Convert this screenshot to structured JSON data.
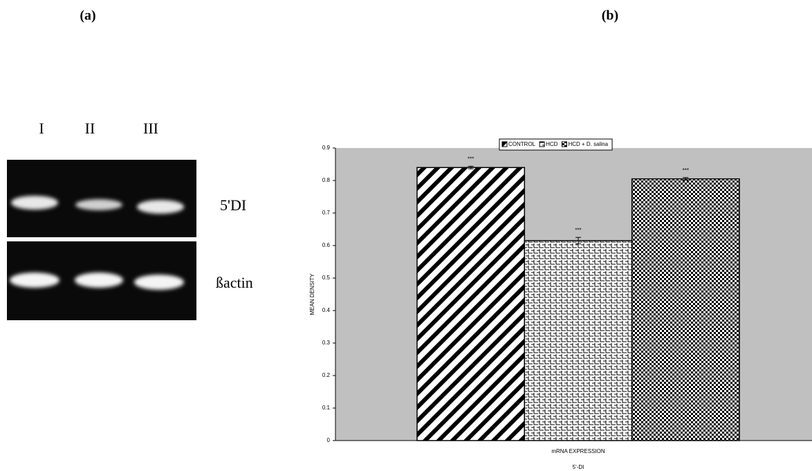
{
  "panels": {
    "a": "(a)",
    "b": "(b)"
  },
  "gel": {
    "lanes": [
      "I",
      "II",
      "III"
    ],
    "rows": [
      "5'DI",
      "ßactin"
    ]
  },
  "chart_data": {
    "type": "bar",
    "y_label": "MEAN DENSITY",
    "x_label": "mRNA EXPRESSION",
    "categories": [
      "5'-DI"
    ],
    "series": [
      {
        "name": "CONTROL",
        "color": "#000000",
        "values": [
          0.84
        ],
        "errors": [
          0.004
        ],
        "value_labels": [
          "***"
        ]
      },
      {
        "name": "HCD",
        "color": "#000000",
        "values": [
          0.615
        ],
        "errors": [
          0.01
        ],
        "value_labels": [
          "***"
        ]
      },
      {
        "name": "HCD + D. salina",
        "color": "#000000",
        "values": [
          0.805
        ],
        "errors": [
          0.004
        ],
        "value_labels": [
          "***"
        ]
      }
    ],
    "ylim": [
      0,
      0.9
    ],
    "yticks": [
      0,
      0.1,
      0.2,
      0.3,
      0.4,
      0.5,
      0.6,
      0.7,
      0.8,
      0.9
    ],
    "background": "#c0c0c0"
  }
}
